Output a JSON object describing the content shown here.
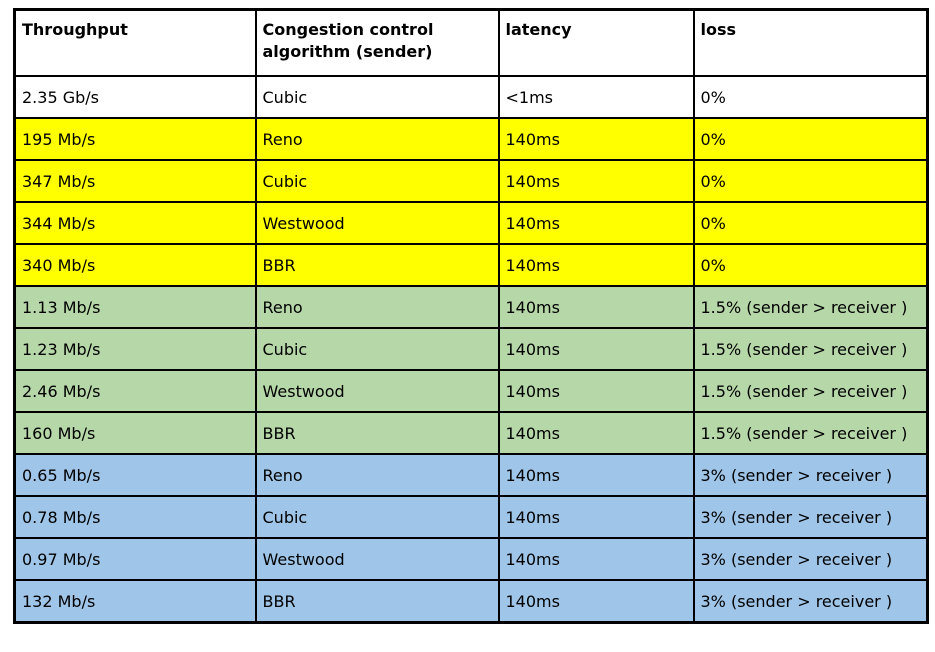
{
  "table": {
    "title": "congestion-control-throughput-results",
    "columns": [
      "Throughput",
      "Congestion control algorithm (sender)",
      "latency",
      "loss"
    ],
    "column_keys": [
      "throughput",
      "algorithm",
      "latency",
      "loss"
    ],
    "colors": {
      "white": "#ffffff",
      "yellow": "#ffff00",
      "green": "#b6d7a8",
      "blue": "#9fc5e8",
      "border": "#000000",
      "text": "#000000"
    },
    "rows": [
      {
        "bg": "white",
        "cells": [
          "2.35 Gb/s",
          "Cubic",
          "<1ms",
          "0%"
        ]
      },
      {
        "bg": "yellow",
        "cells": [
          "195 Mb/s",
          "Reno",
          "140ms",
          "0%"
        ]
      },
      {
        "bg": "yellow",
        "cells": [
          "347 Mb/s",
          "Cubic",
          "140ms",
          "0%"
        ]
      },
      {
        "bg": "yellow",
        "cells": [
          "344 Mb/s",
          "Westwood",
          "140ms",
          "0%"
        ]
      },
      {
        "bg": "yellow",
        "cells": [
          "340 Mb/s",
          "BBR",
          "140ms",
          "0%"
        ]
      },
      {
        "bg": "green",
        "cells": [
          "1.13 Mb/s",
          "Reno",
          "140ms",
          "1.5% (sender > receiver )"
        ]
      },
      {
        "bg": "green",
        "cells": [
          "1.23 Mb/s",
          "Cubic",
          "140ms",
          "1.5% (sender > receiver )"
        ]
      },
      {
        "bg": "green",
        "cells": [
          "2.46 Mb/s",
          "Westwood",
          "140ms",
          "1.5% (sender > receiver )"
        ]
      },
      {
        "bg": "green",
        "cells": [
          "160 Mb/s",
          "BBR",
          "140ms",
          "1.5% (sender > receiver )"
        ]
      },
      {
        "bg": "blue",
        "cells": [
          "0.65 Mb/s",
          "Reno",
          "140ms",
          "3% (sender > receiver )"
        ]
      },
      {
        "bg": "blue",
        "cells": [
          "0.78 Mb/s",
          "Cubic",
          "140ms",
          "3% (sender > receiver )"
        ]
      },
      {
        "bg": "blue",
        "cells": [
          "0.97 Mb/s",
          "Westwood",
          "140ms",
          "3% (sender > receiver )"
        ]
      },
      {
        "bg": "blue",
        "cells": [
          "132 Mb/s",
          "BBR",
          "140ms",
          "3% (sender > receiver )"
        ]
      }
    ]
  }
}
